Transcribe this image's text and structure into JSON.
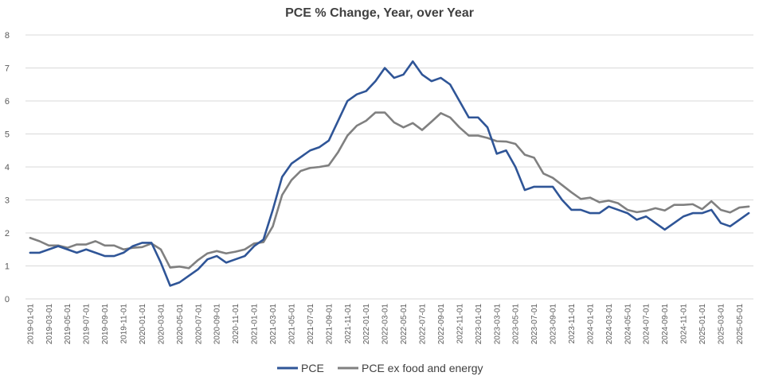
{
  "chart_data": {
    "type": "line",
    "title": "PCE % Change, Year, over Year",
    "xlabel": "",
    "ylabel": "",
    "ylim": [
      0,
      8
    ],
    "yticks": [
      0,
      1,
      2,
      3,
      4,
      5,
      6,
      7,
      8
    ],
    "grid": "horizontal",
    "legend_position": "bottom",
    "x": [
      "2019-01-01",
      "2019-02-01",
      "2019-03-01",
      "2019-04-01",
      "2019-05-01",
      "2019-06-01",
      "2019-07-01",
      "2019-08-01",
      "2019-09-01",
      "2019-10-01",
      "2019-11-01",
      "2019-12-01",
      "2020-01-01",
      "2020-02-01",
      "2020-03-01",
      "2020-04-01",
      "2020-05-01",
      "2020-06-01",
      "2020-07-01",
      "2020-08-01",
      "2020-09-01",
      "2020-10-01",
      "2020-11-01",
      "2020-12-01",
      "2021-01-01",
      "2021-02-01",
      "2021-03-01",
      "2021-04-01",
      "2021-05-01",
      "2021-06-01",
      "2021-07-01",
      "2021-08-01",
      "2021-09-01",
      "2021-10-01",
      "2021-11-01",
      "2021-12-01",
      "2022-01-01",
      "2022-02-01",
      "2022-03-01",
      "2022-04-01",
      "2022-05-01",
      "2022-06-01",
      "2022-07-01",
      "2022-08-01",
      "2022-09-01",
      "2022-10-01",
      "2022-11-01",
      "2022-12-01",
      "2023-01-01",
      "2023-02-01",
      "2023-03-01",
      "2023-04-01",
      "2023-05-01",
      "2023-06-01",
      "2023-07-01",
      "2023-08-01",
      "2023-09-01",
      "2023-10-01",
      "2023-11-01",
      "2023-12-01",
      "2024-01-01",
      "2024-02-01",
      "2024-03-01",
      "2024-04-01",
      "2024-05-01",
      "2024-06-01",
      "2024-07-01",
      "2024-08-01",
      "2024-09-01",
      "2024-10-01",
      "2024-11-01",
      "2024-12-01",
      "2025-01-01",
      "2025-02-01",
      "2025-03-01",
      "2025-04-01",
      "2025-05-01",
      "2025-06-01"
    ],
    "xtick_labels": [
      "2019-01-01",
      "2019-03-01",
      "2019-05-01",
      "2019-07-01",
      "2019-09-01",
      "2019-11-01",
      "2020-01-01",
      "2020-03-01",
      "2020-05-01",
      "2020-07-01",
      "2020-09-01",
      "2020-11-01",
      "2021-01-01",
      "2021-03-01",
      "2021-05-01",
      "2021-07-01",
      "2021-09-01",
      "2021-11-01",
      "2022-01-01",
      "2022-03-01",
      "2022-05-01",
      "2022-07-01",
      "2022-09-01",
      "2022-11-01",
      "2023-01-01",
      "2023-03-01",
      "2023-05-01",
      "2023-07-01",
      "2023-09-01",
      "2023-11-01",
      "2024-01-01",
      "2024-03-01",
      "2024-05-01",
      "2024-07-01",
      "2024-09-01",
      "2024-11-01",
      "2025-01-01",
      "2025-03-01",
      "2025-05-01"
    ],
    "series": [
      {
        "name": "PCE",
        "color": "#2F5597",
        "values": [
          1.4,
          1.4,
          1.5,
          1.6,
          1.5,
          1.4,
          1.5,
          1.4,
          1.3,
          1.3,
          1.4,
          1.6,
          1.7,
          1.7,
          1.1,
          0.4,
          0.5,
          0.7,
          0.9,
          1.2,
          1.3,
          1.1,
          1.2,
          1.3,
          1.6,
          1.8,
          2.7,
          3.7,
          4.1,
          4.3,
          4.5,
          4.6,
          4.8,
          5.4,
          6.0,
          6.2,
          6.3,
          6.6,
          7.0,
          6.7,
          6.8,
          7.2,
          6.8,
          6.6,
          6.7,
          6.5,
          6.0,
          5.5,
          5.5,
          5.2,
          4.4,
          4.5,
          4.0,
          3.3,
          3.4,
          3.4,
          3.4,
          3.0,
          2.7,
          2.7,
          2.6,
          2.6,
          2.8,
          2.7,
          2.6,
          2.4,
          2.5,
          2.3,
          2.1,
          2.3,
          2.5,
          2.6,
          2.6,
          2.7,
          2.3,
          2.2,
          2.4,
          2.6
        ]
      },
      {
        "name": "PCE ex food and energy",
        "color": "#808080",
        "values": [
          1.85,
          1.75,
          1.62,
          1.62,
          1.55,
          1.65,
          1.65,
          1.75,
          1.62,
          1.62,
          1.5,
          1.55,
          1.57,
          1.68,
          1.5,
          0.95,
          0.98,
          0.93,
          1.18,
          1.38,
          1.45,
          1.38,
          1.43,
          1.5,
          1.68,
          1.72,
          2.2,
          3.15,
          3.6,
          3.88,
          3.97,
          4.0,
          4.05,
          4.45,
          4.95,
          5.25,
          5.4,
          5.65,
          5.65,
          5.35,
          5.2,
          5.33,
          5.12,
          5.37,
          5.63,
          5.5,
          5.2,
          4.95,
          4.95,
          4.88,
          4.78,
          4.77,
          4.7,
          4.37,
          4.28,
          3.8,
          3.67,
          3.45,
          3.23,
          3.03,
          3.07,
          2.93,
          2.98,
          2.9,
          2.7,
          2.63,
          2.67,
          2.75,
          2.68,
          2.85,
          2.85,
          2.87,
          2.72,
          2.96,
          2.7,
          2.62,
          2.77,
          2.8
        ]
      }
    ]
  }
}
